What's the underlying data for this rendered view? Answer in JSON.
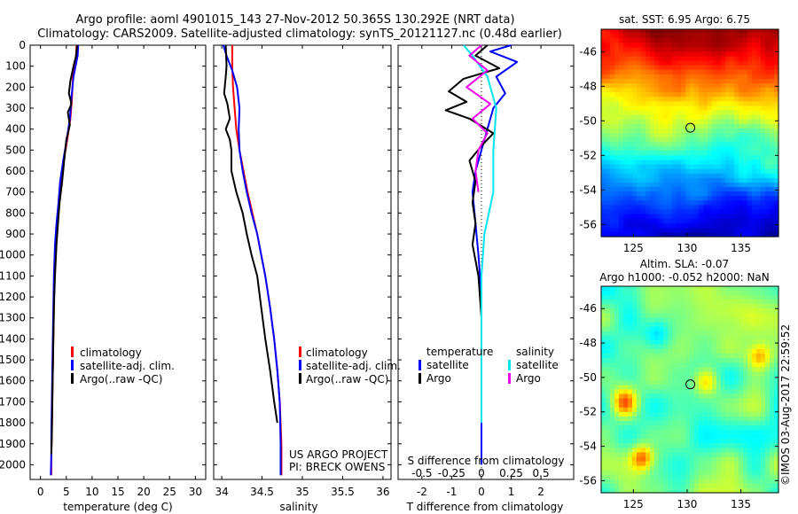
{
  "header": {
    "title": "Argo profile: aoml 4901015_143 27-Nov-2012 50.365S 130.292E (NRT data)",
    "subtitle": "Climatology: CARS2009. Satellite-adjusted climatology: synTS_20121127.nc (0.48d earlier)"
  },
  "colors": {
    "climatology": "#ff0000",
    "satellite": "#0000ff",
    "argo": "#000000",
    "sal_satellite": "#00e5ee",
    "sal_argo": "#ee00ee"
  },
  "chart_data": [
    {
      "type": "line",
      "xlabel": "temperature (deg C)",
      "ylabel": "",
      "xlim": [
        -2,
        32
      ],
      "ylim": [
        2070,
        0
      ],
      "xticks": [
        0,
        5,
        10,
        15,
        20,
        25,
        30
      ],
      "yticks": [
        0,
        100,
        200,
        300,
        400,
        500,
        600,
        700,
        800,
        900,
        1000,
        1100,
        1200,
        1300,
        1400,
        1500,
        1600,
        1700,
        1800,
        1900,
        2000
      ],
      "legend": [
        "climatology",
        "satellite-adj. clim.",
        "Argo(..raw -QC)"
      ],
      "series": [
        {
          "name": "climatology",
          "color": "#ff0000",
          "x": [
            7.0,
            6.9,
            6.6,
            6.3,
            6.1,
            5.8,
            5.2,
            4.5,
            3.9,
            3.5,
            3.2,
            2.9,
            2.7,
            2.6,
            2.5,
            2.4,
            2.3,
            2.2,
            2.1,
            2.1
          ],
          "y": [
            0,
            50,
            100,
            150,
            250,
            350,
            450,
            550,
            650,
            750,
            850,
            950,
            1100,
            1250,
            1400,
            1550,
            1700,
            1850,
            1950,
            2050
          ]
        },
        {
          "name": "satellite-adj. clim.",
          "color": "#0000ff",
          "x": [
            7.3,
            7.2,
            6.8,
            6.4,
            6.0,
            5.7,
            5.1,
            4.4,
            3.8,
            3.5,
            3.1,
            2.8,
            2.6,
            2.5,
            2.4,
            2.3,
            2.2,
            2.1,
            2.1,
            2.0
          ],
          "y": [
            0,
            50,
            100,
            150,
            250,
            350,
            450,
            550,
            650,
            750,
            850,
            950,
            1100,
            1250,
            1400,
            1550,
            1700,
            1850,
            1950,
            2050
          ]
        },
        {
          "name": "Argo(..raw -QC)",
          "color": "#000000",
          "x": [
            7.1,
            6.9,
            6.4,
            5.8,
            5.5,
            6.0,
            5.3,
            5.7,
            5.0,
            4.6,
            4.2,
            3.7,
            3.4,
            3.1,
            2.8,
            2.6,
            2.5,
            2.4,
            2.3,
            2.2,
            2.1
          ],
          "y": [
            0,
            50,
            100,
            170,
            230,
            280,
            320,
            380,
            450,
            550,
            650,
            750,
            850,
            950,
            1100,
            1250,
            1400,
            1550,
            1700,
            1850,
            1950
          ]
        }
      ]
    },
    {
      "type": "line",
      "xlabel": "salinity",
      "ylabel": "",
      "xlim": [
        33.9,
        36.1
      ],
      "ylim": [
        2070,
        0
      ],
      "xticks": [
        34,
        34.5,
        35,
        35.5,
        36
      ],
      "legend": [
        "climatology",
        "satellite-adj. clim.",
        "Argo(..raw -QC)"
      ],
      "annotation": [
        "US ARGO PROJECT",
        "PI: BRECK OWENS"
      ],
      "series": [
        {
          "name": "climatology",
          "color": "#ff0000",
          "x": [
            34.13,
            34.13,
            34.14,
            34.16,
            34.18,
            34.22,
            34.27,
            34.32,
            34.38,
            34.44,
            34.49,
            34.54,
            34.6,
            34.65,
            34.69,
            34.72,
            34.74,
            34.74
          ],
          "y": [
            0,
            100,
            200,
            300,
            400,
            500,
            600,
            700,
            800,
            900,
            1000,
            1100,
            1250,
            1400,
            1550,
            1700,
            1900,
            2050
          ]
        },
        {
          "name": "satellite-adj. clim.",
          "color": "#0000ff",
          "x": [
            34.02,
            34.06,
            34.13,
            34.19,
            34.22,
            34.21,
            34.22,
            34.26,
            34.31,
            34.37,
            34.44,
            34.49,
            34.54,
            34.6,
            34.65,
            34.69,
            34.72,
            34.73,
            34.73
          ],
          "y": [
            0,
            50,
            120,
            200,
            300,
            400,
            500,
            600,
            700,
            800,
            900,
            1000,
            1100,
            1250,
            1400,
            1550,
            1700,
            1900,
            2050
          ]
        },
        {
          "name": "Argo(..raw -QC)",
          "color": "#000000",
          "x": [
            34.05,
            34.06,
            34.05,
            34.03,
            34.07,
            34.1,
            34.05,
            34.1,
            34.12,
            34.12,
            34.18,
            34.26,
            34.31,
            34.37,
            34.44,
            34.49,
            34.54,
            34.6,
            34.65,
            34.69
          ],
          "y": [
            0,
            100,
            150,
            230,
            280,
            350,
            400,
            450,
            500,
            600,
            700,
            800,
            900,
            1000,
            1100,
            1250,
            1400,
            1550,
            1700,
            1800
          ]
        }
      ]
    },
    {
      "type": "line",
      "xlabel": "T difference from climatology",
      "top_label": "S difference from climatology",
      "xlim": [
        -2.8,
        3.1
      ],
      "ylim": [
        2070,
        0
      ],
      "xticks": [
        -2,
        -1,
        0,
        1,
        2
      ],
      "sticks": [
        -0.5,
        -0.25,
        0,
        0.25,
        0.5
      ],
      "legend_headers": [
        "temperature",
        "salinity"
      ],
      "legend": [
        "satellite",
        "Argo",
        "satellite",
        "Argo"
      ],
      "series": [
        {
          "name": "satellite",
          "color": "#0000ff",
          "x": [
            1.0,
            0.3,
            1.2,
            0.5,
            0.8,
            0.4,
            0.2,
            0.0,
            -0.2,
            -0.3,
            -0.2,
            -0.1,
            0.0,
            0.0,
            0.0,
            0.0,
            0.0
          ],
          "y": [
            0,
            30,
            80,
            150,
            230,
            300,
            400,
            500,
            600,
            700,
            850,
            1000,
            1200,
            1400,
            1600,
            1800,
            2000
          ]
        },
        {
          "name": "Argo",
          "color": "#000000",
          "x": [
            0.2,
            -0.2,
            0.6,
            -0.6,
            -1.1,
            -0.5,
            -1.2,
            -0.4,
            0.4,
            0.0,
            -0.4,
            -0.2,
            -0.3,
            -0.2,
            -0.3,
            -0.1,
            0.0,
            0.0
          ],
          "y": [
            0,
            50,
            110,
            160,
            220,
            270,
            310,
            350,
            420,
            480,
            550,
            650,
            750,
            850,
            950,
            1100,
            1300,
            1500
          ]
        },
        {
          "name": "satellite",
          "color": "#00e5ee",
          "x": [
            -0.6,
            -0.3,
            0.2,
            0.5,
            0.4,
            0.4,
            0.1,
            0.0,
            0.0,
            0.0
          ],
          "y": [
            0,
            50,
            150,
            300,
            500,
            700,
            900,
            1100,
            1400,
            1800
          ]
        },
        {
          "name": "Argo",
          "color": "#ee00ee",
          "x": [
            0.0,
            -0.4,
            0.2,
            -0.5,
            0.3,
            -0.3,
            0.2,
            -0.1,
            -0.2,
            -0.1
          ],
          "y": [
            0,
            50,
            120,
            200,
            280,
            350,
            420,
            500,
            600,
            700
          ]
        }
      ]
    }
  ],
  "maps": [
    {
      "title": "sat. SST: 6.95  Argo: 6.75",
      "xticks": [
        125,
        130,
        135
      ],
      "yticks": [
        -46,
        -48,
        -50,
        -52,
        -54,
        -56
      ],
      "xlim": [
        122,
        138.5
      ],
      "ylim": [
        -56.7,
        -44.7
      ],
      "marker": [
        130.3,
        -50.4
      ],
      "type": "heatmap"
    },
    {
      "title_line1": "Altim. SLA: -0.07",
      "title_line2": "Argo h1000: -0.052 h2000: NaN",
      "xticks": [
        125,
        130,
        135
      ],
      "yticks": [
        -46,
        -48,
        -50,
        -52,
        -54,
        -56
      ],
      "xlim": [
        122,
        138.5
      ],
      "ylim": [
        -56.7,
        -44.7
      ],
      "marker": [
        130.3,
        -50.4
      ],
      "type": "heatmap"
    }
  ],
  "credit": "©IMOS 03-Aug-2017 22:59:52"
}
